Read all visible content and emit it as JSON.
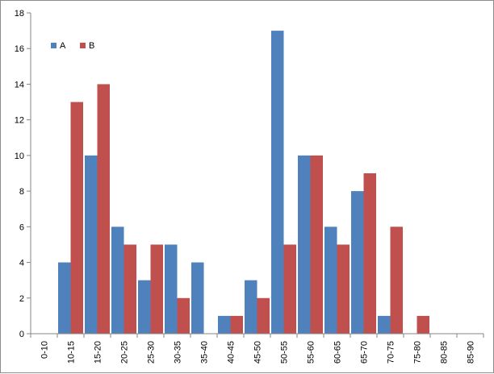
{
  "chart_data": {
    "type": "bar",
    "categories": [
      "0-10",
      "10-15",
      "15-20",
      "20-25",
      "25-30",
      "30-35",
      "35-40",
      "40-45",
      "45-50",
      "50-55",
      "55-60",
      "60-65",
      "65-70",
      "70-75",
      "75-80",
      "80-85",
      "85-90"
    ],
    "series": [
      {
        "name": "A",
        "color": "#4f81bd",
        "values": [
          0,
          4,
          10,
          6,
          3,
          5,
          4,
          1,
          3,
          17,
          10,
          6,
          8,
          1,
          0,
          0,
          0
        ]
      },
      {
        "name": "B",
        "color": "#c0504d",
        "values": [
          0,
          13,
          14,
          5,
          5,
          2,
          0,
          1,
          2,
          5,
          10,
          5,
          9,
          6,
          1,
          0,
          0
        ]
      }
    ],
    "ylim": [
      0,
      18
    ],
    "yticks": [
      0,
      2,
      4,
      6,
      8,
      10,
      12,
      14,
      16,
      18
    ],
    "grid": false,
    "legend": "top-left",
    "title": "",
    "xlabel": "",
    "ylabel": ""
  }
}
